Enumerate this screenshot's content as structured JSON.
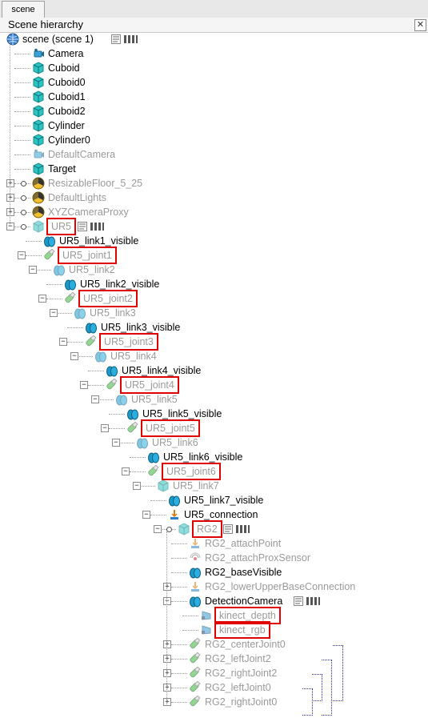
{
  "tab": {
    "label": "scene"
  },
  "panel": {
    "title": "Scene hierarchy",
    "close_symbol": "✕"
  },
  "nodes": [
    {
      "label": "scene (scene 1)",
      "icon": "globe-icon",
      "dim": false,
      "boxed": false,
      "expander": "",
      "extras": true
    },
    {
      "label": "Camera",
      "icon": "camera-icon",
      "dim": false,
      "boxed": false,
      "expander": "",
      "extras": false
    },
    {
      "label": "Cuboid",
      "icon": "cube-icon",
      "dim": false,
      "boxed": false,
      "expander": "",
      "extras": false
    },
    {
      "label": "Cuboid0",
      "icon": "cube-icon",
      "dim": false,
      "boxed": false,
      "expander": "",
      "extras": false
    },
    {
      "label": "Cuboid1",
      "icon": "cube-icon",
      "dim": false,
      "boxed": false,
      "expander": "",
      "extras": false
    },
    {
      "label": "Cuboid2",
      "icon": "cube-icon",
      "dim": false,
      "boxed": false,
      "expander": "",
      "extras": false
    },
    {
      "label": "Cylinder",
      "icon": "cube-icon",
      "dim": false,
      "boxed": false,
      "expander": "",
      "extras": false
    },
    {
      "label": "Cylinder0",
      "icon": "cube-icon",
      "dim": false,
      "boxed": false,
      "expander": "",
      "extras": false
    },
    {
      "label": "DefaultCamera",
      "icon": "camera-icon",
      "dim": true,
      "boxed": false,
      "expander": "",
      "extras": false
    },
    {
      "label": "Target",
      "icon": "cube-icon",
      "dim": false,
      "boxed": false,
      "expander": "",
      "extras": false
    },
    {
      "label": "ResizableFloor_5_25",
      "icon": "model-icon",
      "dim": true,
      "boxed": false,
      "expander": "+",
      "extras": false
    },
    {
      "label": "DefaultLights",
      "icon": "model-icon",
      "dim": true,
      "boxed": false,
      "expander": "+",
      "extras": false
    },
    {
      "label": "XYZCameraProxy",
      "icon": "model-icon",
      "dim": true,
      "boxed": false,
      "expander": "+",
      "extras": false
    },
    {
      "label": "UR5",
      "icon": "cube-icon",
      "dim": true,
      "boxed": true,
      "expander": "-",
      "extras": true
    },
    {
      "label": "UR5_link1_visible",
      "icon": "shape-icon",
      "dim": false,
      "boxed": false,
      "expander": "",
      "extras": false
    },
    {
      "label": "UR5_joint1",
      "icon": "joint-icon",
      "dim": true,
      "boxed": true,
      "expander": "-",
      "extras": false
    },
    {
      "label": "UR5_link2",
      "icon": "shape-icon",
      "dim": true,
      "boxed": false,
      "expander": "-",
      "extras": false
    },
    {
      "label": "UR5_link2_visible",
      "icon": "shape-icon",
      "dim": false,
      "boxed": false,
      "expander": "",
      "extras": false
    },
    {
      "label": "UR5_joint2",
      "icon": "joint-icon",
      "dim": true,
      "boxed": true,
      "expander": "-",
      "extras": false
    },
    {
      "label": "UR5_link3",
      "icon": "shape-icon",
      "dim": true,
      "boxed": false,
      "expander": "-",
      "extras": false
    },
    {
      "label": "UR5_link3_visible",
      "icon": "shape-icon",
      "dim": false,
      "boxed": false,
      "expander": "",
      "extras": false
    },
    {
      "label": "UR5_joint3",
      "icon": "joint-icon",
      "dim": true,
      "boxed": true,
      "expander": "-",
      "extras": false
    },
    {
      "label": "UR5_link4",
      "icon": "shape-icon",
      "dim": true,
      "boxed": false,
      "expander": "-",
      "extras": false
    },
    {
      "label": "UR5_link4_visible",
      "icon": "shape-icon",
      "dim": false,
      "boxed": false,
      "expander": "",
      "extras": false
    },
    {
      "label": "UR5_joint4",
      "icon": "joint-icon",
      "dim": true,
      "boxed": true,
      "expander": "-",
      "extras": false
    },
    {
      "label": "UR5_link5",
      "icon": "shape-icon",
      "dim": true,
      "boxed": false,
      "expander": "-",
      "extras": false
    },
    {
      "label": "UR5_link5_visible",
      "icon": "shape-icon",
      "dim": false,
      "boxed": false,
      "expander": "",
      "extras": false
    },
    {
      "label": "UR5_joint5",
      "icon": "joint-icon",
      "dim": true,
      "boxed": true,
      "expander": "-",
      "extras": false
    },
    {
      "label": "UR5_link6",
      "icon": "shape-icon",
      "dim": true,
      "boxed": false,
      "expander": "-",
      "extras": false
    },
    {
      "label": "UR5_link6_visible",
      "icon": "shape-icon",
      "dim": false,
      "boxed": false,
      "expander": "",
      "extras": false
    },
    {
      "label": "UR5_joint6",
      "icon": "joint-icon",
      "dim": true,
      "boxed": true,
      "expander": "-",
      "extras": false
    },
    {
      "label": "UR5_link7",
      "icon": "cube-icon",
      "dim": true,
      "boxed": false,
      "expander": "-",
      "extras": false
    },
    {
      "label": "UR5_link7_visible",
      "icon": "shape-icon",
      "dim": false,
      "boxed": false,
      "expander": "",
      "extras": false
    },
    {
      "label": "UR5_connection",
      "icon": "dummy-icon",
      "dim": false,
      "boxed": false,
      "expander": "-",
      "extras": false
    },
    {
      "label": "RG2",
      "icon": "cube-icon",
      "dim": true,
      "boxed": true,
      "expander": "-",
      "extras": true
    },
    {
      "label": "RG2_attachPoint",
      "icon": "dummy-icon",
      "dim": true,
      "boxed": false,
      "expander": "",
      "extras": false
    },
    {
      "label": "RG2_attachProxSensor",
      "icon": "sensor-icon",
      "dim": true,
      "boxed": false,
      "expander": "",
      "extras": false
    },
    {
      "label": "RG2_baseVisible",
      "icon": "shape-icon",
      "dim": false,
      "boxed": false,
      "expander": "",
      "extras": false
    },
    {
      "label": "RG2_lowerUpperBaseConnection",
      "icon": "dummy-icon",
      "dim": true,
      "boxed": false,
      "expander": "+",
      "extras": false
    },
    {
      "label": "DetectionCamera",
      "icon": "shape-icon",
      "dim": false,
      "boxed": false,
      "expander": "-",
      "extras": true
    },
    {
      "label": "kinect_depth",
      "icon": "vision-sensor-icon",
      "dim": true,
      "boxed": true,
      "expander": "",
      "extras": false
    },
    {
      "label": "kinect_rgb",
      "icon": "vision-sensor-icon",
      "dim": true,
      "boxed": true,
      "expander": "",
      "extras": false
    },
    {
      "label": "RG2_centerJoint0",
      "icon": "joint-icon",
      "dim": true,
      "boxed": false,
      "expander": "+",
      "extras": false
    },
    {
      "label": "RG2_leftJoint2",
      "icon": "joint-icon",
      "dim": true,
      "boxed": false,
      "expander": "+",
      "extras": false
    },
    {
      "label": "RG2_rightJoint2",
      "icon": "joint-icon",
      "dim": true,
      "boxed": false,
      "expander": "+",
      "extras": false
    },
    {
      "label": "RG2_leftJoint0",
      "icon": "joint-icon",
      "dim": true,
      "boxed": false,
      "expander": "+",
      "extras": false
    },
    {
      "label": "RG2_rightJoint0",
      "icon": "joint-icon",
      "dim": true,
      "boxed": false,
      "expander": "+",
      "extras": false
    }
  ],
  "colors": {
    "cube": "#2bc4c4",
    "joint": "#3cb43c",
    "shape": "#1a9ac8",
    "dim_text": "#9a9a9a",
    "highlight": "#e00000",
    "bracket": "#2a2a9a"
  }
}
